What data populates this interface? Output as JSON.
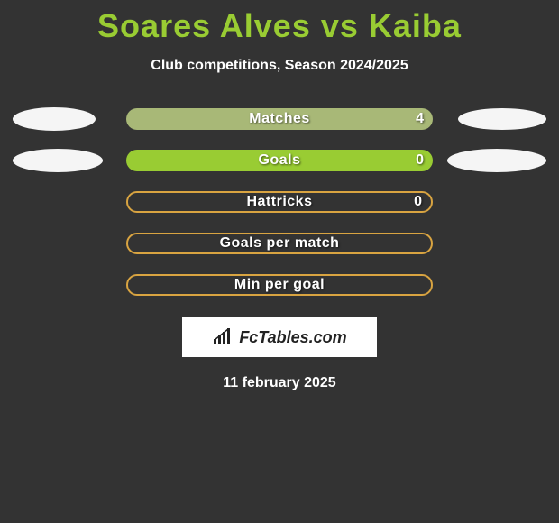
{
  "header": {
    "title": "Soares Alves vs Kaiba",
    "subtitle": "Club competitions, Season 2024/2025"
  },
  "colors": {
    "background": "#333333",
    "title_color": "#99cc33",
    "ellipse_fill": "#f5f5f5",
    "text_white": "#ffffff",
    "bar_lighter": "#aab87a",
    "bar_light": "#99cc33",
    "bar_border": "#d9a441"
  },
  "rows": [
    {
      "label": "Matches",
      "value_right": "4",
      "bar_style": "filled_gradient",
      "bar_bg": "#a8b877",
      "bar_border": null,
      "left_ellipse": {
        "w": 92,
        "h": 26
      },
      "right_ellipse": {
        "w": 98,
        "h": 24
      }
    },
    {
      "label": "Goals",
      "value_right": "0",
      "bar_style": "filled_flat",
      "bar_bg": "#99cc33",
      "bar_border": null,
      "left_ellipse": {
        "w": 100,
        "h": 26
      },
      "right_ellipse": {
        "w": 110,
        "h": 26
      }
    },
    {
      "label": "Hattricks",
      "value_right": "0",
      "bar_style": "outline",
      "bar_bg": "transparent",
      "bar_border": "#d9a441",
      "left_ellipse": null,
      "right_ellipse": null
    },
    {
      "label": "Goals per match",
      "value_right": "",
      "bar_style": "outline",
      "bar_bg": "transparent",
      "bar_border": "#d9a441",
      "left_ellipse": null,
      "right_ellipse": null
    },
    {
      "label": "Min per goal",
      "value_right": "",
      "bar_style": "outline",
      "bar_bg": "transparent",
      "bar_border": "#d9a441",
      "left_ellipse": null,
      "right_ellipse": null
    }
  ],
  "footer": {
    "logo_text": "FcTables.com",
    "date": "11 february 2025"
  }
}
